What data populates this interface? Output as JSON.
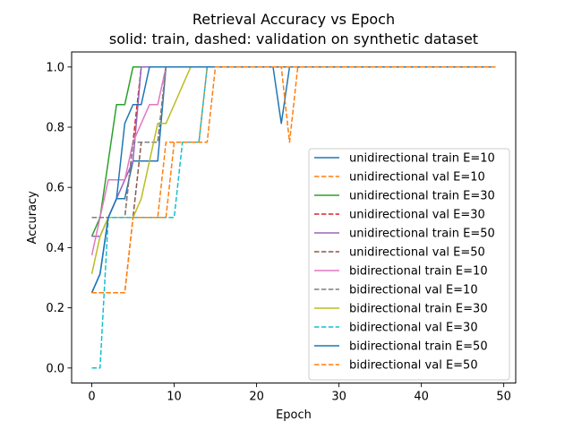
{
  "chart_data": {
    "type": "line",
    "title_line1": "Retrieval Accuracy vs Epoch",
    "title_line2": "solid: train, dashed: validation on synthetic dataset",
    "xlabel": "Epoch",
    "ylabel": "Accuracy",
    "xlim": [
      -2.45,
      51.45
    ],
    "ylim": [
      -0.05,
      1.05
    ],
    "xticks": [
      0,
      10,
      20,
      30,
      40,
      50
    ],
    "yticks": [
      0.0,
      0.2,
      0.4,
      0.6,
      0.8,
      1.0
    ],
    "xtick_labels": [
      "0",
      "10",
      "20",
      "30",
      "40",
      "50"
    ],
    "ytick_labels": [
      "0.0",
      "0.2",
      "0.4",
      "0.6",
      "0.8",
      "1.0"
    ],
    "legend_position": "lower-right",
    "series": [
      {
        "name": "unidirectional train E=10",
        "color": "#1f77b4",
        "dashed": false,
        "x": [
          0,
          1,
          2,
          3,
          4,
          5,
          6,
          7,
          8,
          9,
          10,
          11,
          12,
          13,
          14,
          15,
          16,
          17,
          18,
          19,
          20,
          21,
          22,
          23,
          24,
          25,
          26,
          27,
          28,
          29,
          30,
          31,
          32,
          33,
          34,
          35,
          36,
          37,
          38,
          39,
          40,
          41,
          42,
          43,
          44,
          45,
          46,
          47,
          48,
          49
        ],
        "y": [
          0.25,
          0.3125,
          0.5,
          0.5625,
          0.5625,
          0.6875,
          0.6875,
          0.6875,
          0.6875,
          1.0,
          1.0,
          1.0,
          1.0,
          1.0,
          1.0,
          1.0,
          1.0,
          1.0,
          1.0,
          1.0,
          1.0,
          1.0,
          1.0,
          0.8125,
          1.0,
          1.0,
          1.0,
          1.0,
          1.0,
          1.0,
          1.0,
          1.0,
          1.0,
          1.0,
          1.0,
          1.0,
          1.0,
          1.0,
          1.0,
          1.0,
          1.0,
          1.0,
          1.0,
          1.0,
          1.0,
          1.0,
          1.0,
          1.0,
          1.0,
          1.0
        ]
      },
      {
        "name": "unidirectional val E=10",
        "color": "#ff7f0e",
        "dashed": true,
        "x": [
          0,
          1,
          2,
          3,
          4,
          5,
          6,
          7,
          8,
          9,
          10,
          11,
          12,
          13,
          14,
          15,
          16,
          17,
          18,
          19,
          20,
          21,
          22,
          23,
          24,
          25,
          26,
          27,
          28,
          29,
          30,
          31,
          32,
          33,
          34,
          35,
          36,
          37,
          38,
          39,
          40,
          41,
          42,
          43,
          44,
          45,
          46,
          47,
          48,
          49
        ],
        "y": [
          0.25,
          0.25,
          0.25,
          0.25,
          0.25,
          0.5,
          0.5,
          0.5,
          0.5,
          0.75,
          0.75,
          0.75,
          0.75,
          0.75,
          1.0,
          1.0,
          1.0,
          1.0,
          1.0,
          1.0,
          1.0,
          1.0,
          1.0,
          1.0,
          0.75,
          1.0,
          1.0,
          1.0,
          1.0,
          1.0,
          1.0,
          1.0,
          1.0,
          1.0,
          1.0,
          1.0,
          1.0,
          1.0,
          1.0,
          1.0,
          1.0,
          1.0,
          1.0,
          1.0,
          1.0,
          1.0,
          1.0,
          1.0,
          1.0,
          1.0
        ]
      },
      {
        "name": "unidirectional train E=30",
        "color": "#2ca02c",
        "dashed": false,
        "x": [
          0,
          1,
          2,
          3,
          4,
          5,
          6,
          7,
          8,
          9,
          10,
          11,
          12,
          13,
          14,
          15,
          16,
          17,
          18,
          19,
          20,
          21,
          22,
          23,
          24,
          25,
          26,
          27,
          28,
          29
        ],
        "y": [
          0.4375,
          0.5,
          0.6875,
          0.875,
          0.875,
          1.0,
          1.0,
          1.0,
          1.0,
          1.0,
          1.0,
          1.0,
          1.0,
          1.0,
          1.0,
          1.0,
          1.0,
          1.0,
          1.0,
          1.0,
          1.0,
          1.0,
          1.0,
          1.0,
          1.0,
          1.0,
          1.0,
          1.0,
          1.0,
          1.0
        ]
      },
      {
        "name": "unidirectional val E=30",
        "color": "#d62728",
        "dashed": true,
        "x": [
          0,
          1,
          2,
          3,
          4,
          5,
          6,
          7,
          8,
          9,
          10,
          11,
          12,
          13,
          14,
          15,
          16,
          17,
          18,
          19,
          20,
          21,
          22,
          23,
          24,
          25,
          26,
          27,
          28,
          29
        ],
        "y": [
          0.5,
          0.5,
          0.5,
          0.5,
          0.5,
          0.75,
          1.0,
          1.0,
          1.0,
          1.0,
          1.0,
          1.0,
          1.0,
          1.0,
          1.0,
          1.0,
          1.0,
          1.0,
          1.0,
          1.0,
          1.0,
          1.0,
          1.0,
          1.0,
          1.0,
          1.0,
          1.0,
          1.0,
          1.0,
          1.0
        ]
      },
      {
        "name": "unidirectional train E=50",
        "color": "#9467bd",
        "dashed": false,
        "x": [
          0,
          1,
          2,
          3,
          4,
          5,
          6,
          7,
          8,
          9,
          10,
          11,
          12,
          13,
          14,
          15,
          16,
          17,
          18,
          19,
          20,
          21,
          22,
          23,
          24,
          25,
          26,
          27,
          28,
          29,
          30,
          31,
          32,
          33,
          34,
          35,
          36,
          37,
          38,
          39,
          40,
          41,
          42,
          43,
          44,
          45,
          46,
          47,
          48,
          49
        ],
        "y": [
          0.4375,
          0.4375,
          0.5,
          0.5625,
          0.625,
          0.6875,
          1.0,
          1.0,
          1.0,
          1.0,
          1.0,
          1.0,
          1.0,
          1.0,
          1.0,
          1.0,
          1.0,
          1.0,
          1.0,
          1.0,
          1.0,
          1.0,
          1.0,
          1.0,
          1.0,
          1.0,
          1.0,
          1.0,
          1.0,
          1.0,
          1.0,
          1.0,
          1.0,
          1.0,
          1.0,
          1.0,
          1.0,
          1.0,
          1.0,
          1.0,
          1.0,
          1.0,
          1.0,
          1.0,
          1.0,
          1.0,
          1.0,
          1.0,
          1.0,
          1.0
        ]
      },
      {
        "name": "unidirectional val E=50",
        "color": "#8c564b",
        "dashed": true,
        "x": [
          0,
          1,
          2,
          3,
          4,
          5,
          6,
          7,
          8,
          9,
          10,
          11,
          12,
          13,
          14,
          15,
          16,
          17,
          18,
          19,
          20,
          21,
          22,
          23,
          24,
          25,
          26,
          27,
          28,
          29,
          30,
          31,
          32,
          33,
          34,
          35,
          36,
          37,
          38,
          39,
          40,
          41,
          42,
          43,
          44,
          45,
          46,
          47,
          48,
          49
        ],
        "y": [
          0.5,
          0.5,
          0.5,
          0.5,
          0.5,
          0.5,
          0.75,
          0.75,
          0.75,
          1.0,
          1.0,
          1.0,
          1.0,
          1.0,
          1.0,
          1.0,
          1.0,
          1.0,
          1.0,
          1.0,
          1.0,
          1.0,
          1.0,
          1.0,
          1.0,
          1.0,
          1.0,
          1.0,
          1.0,
          1.0,
          1.0,
          1.0,
          1.0,
          1.0,
          1.0,
          1.0,
          1.0,
          1.0,
          1.0,
          1.0,
          1.0,
          1.0,
          1.0,
          1.0,
          1.0,
          1.0,
          1.0,
          1.0,
          1.0,
          1.0
        ]
      },
      {
        "name": "bidirectional train E=10",
        "color": "#e377c2",
        "dashed": false,
        "x": [
          0,
          1,
          2,
          3,
          4,
          5,
          6,
          7,
          8,
          9
        ],
        "y": [
          0.375,
          0.5,
          0.625,
          0.625,
          0.625,
          0.75,
          0.8125,
          0.875,
          0.875,
          1.0
        ]
      },
      {
        "name": "bidirectional val E=10",
        "color": "#7f7f7f",
        "dashed": true,
        "x": [
          0,
          1,
          2,
          3,
          4,
          5,
          6,
          7,
          8,
          9
        ],
        "y": [
          0.5,
          0.5,
          0.5,
          0.5,
          0.5,
          0.75,
          0.75,
          0.75,
          0.75,
          1.0
        ]
      },
      {
        "name": "bidirectional train E=30",
        "color": "#bcbd22",
        "dashed": false,
        "x": [
          0,
          1,
          2,
          3,
          4,
          5,
          6,
          7,
          8,
          9,
          10,
          11,
          12,
          13,
          14,
          15,
          16,
          17,
          18,
          19,
          20,
          21,
          22,
          23,
          24,
          25,
          26,
          27,
          28,
          29
        ],
        "y": [
          0.3125,
          0.4375,
          0.5,
          0.5,
          0.5,
          0.5,
          0.5625,
          0.6875,
          0.8125,
          0.8125,
          0.875,
          0.9375,
          1.0,
          1.0,
          1.0,
          1.0,
          1.0,
          1.0,
          1.0,
          1.0,
          1.0,
          1.0,
          1.0,
          1.0,
          1.0,
          1.0,
          1.0,
          1.0,
          1.0,
          1.0
        ]
      },
      {
        "name": "bidirectional val E=30",
        "color": "#17becf",
        "dashed": true,
        "x": [
          0,
          1,
          2,
          3,
          4,
          5,
          6,
          7,
          8,
          9,
          10,
          11,
          12,
          13,
          14,
          15,
          16,
          17,
          18,
          19,
          20,
          21,
          22,
          23,
          24,
          25,
          26,
          27,
          28,
          29
        ],
        "y": [
          0.0,
          0.0,
          0.5,
          0.5,
          0.5,
          0.5,
          0.5,
          0.5,
          0.5,
          0.5,
          0.5,
          0.75,
          0.75,
          0.75,
          1.0,
          1.0,
          1.0,
          1.0,
          1.0,
          1.0,
          1.0,
          1.0,
          1.0,
          1.0,
          1.0,
          1.0,
          1.0,
          1.0,
          1.0,
          1.0
        ]
      },
      {
        "name": "bidirectional train E=50",
        "color": "#1f77b4",
        "dashed": false,
        "x": [
          0,
          1,
          2,
          3,
          4,
          5,
          6,
          7,
          8,
          9,
          10,
          11,
          12,
          13,
          14,
          15,
          16,
          17,
          18,
          19,
          20,
          21,
          22,
          23,
          24,
          25,
          26,
          27,
          28,
          29,
          30,
          31,
          32,
          33,
          34,
          35,
          36,
          37,
          38,
          39,
          40,
          41,
          42,
          43,
          44,
          45,
          46,
          47,
          48,
          49
        ],
        "y": [
          0.25,
          0.3125,
          0.5,
          0.5625,
          0.8125,
          0.875,
          0.875,
          1.0,
          1.0,
          1.0,
          1.0,
          1.0,
          1.0,
          1.0,
          1.0,
          1.0,
          1.0,
          1.0,
          1.0,
          1.0,
          1.0,
          1.0,
          1.0,
          1.0,
          1.0,
          1.0,
          1.0,
          1.0,
          1.0,
          1.0,
          1.0,
          1.0,
          1.0,
          1.0,
          1.0,
          1.0,
          1.0,
          1.0,
          1.0,
          1.0,
          1.0,
          1.0,
          1.0,
          1.0,
          1.0,
          1.0,
          1.0,
          1.0,
          1.0,
          1.0
        ]
      },
      {
        "name": "bidirectional val E=50",
        "color": "#ff7f0e",
        "dashed": true,
        "x": [
          0,
          1,
          2,
          3,
          4,
          5,
          6,
          7,
          8,
          9,
          10,
          11,
          12,
          13,
          14,
          15,
          16,
          17,
          18,
          19,
          20,
          21,
          22,
          23,
          24,
          25,
          26,
          27,
          28,
          29,
          30,
          31,
          32,
          33,
          34,
          35,
          36,
          37,
          38,
          39,
          40,
          41,
          42,
          43,
          44,
          45,
          46,
          47,
          48,
          49
        ],
        "y": [
          0.25,
          0.25,
          0.25,
          0.25,
          0.25,
          0.5,
          0.5,
          0.5,
          0.5,
          0.5,
          0.75,
          0.75,
          0.75,
          0.75,
          0.75,
          1.0,
          1.0,
          1.0,
          1.0,
          1.0,
          1.0,
          1.0,
          1.0,
          1.0,
          1.0,
          1.0,
          1.0,
          1.0,
          1.0,
          1.0,
          1.0,
          1.0,
          1.0,
          1.0,
          1.0,
          1.0,
          1.0,
          1.0,
          1.0,
          1.0,
          1.0,
          1.0,
          1.0,
          1.0,
          1.0,
          1.0,
          1.0,
          1.0,
          1.0,
          1.0
        ]
      }
    ]
  }
}
